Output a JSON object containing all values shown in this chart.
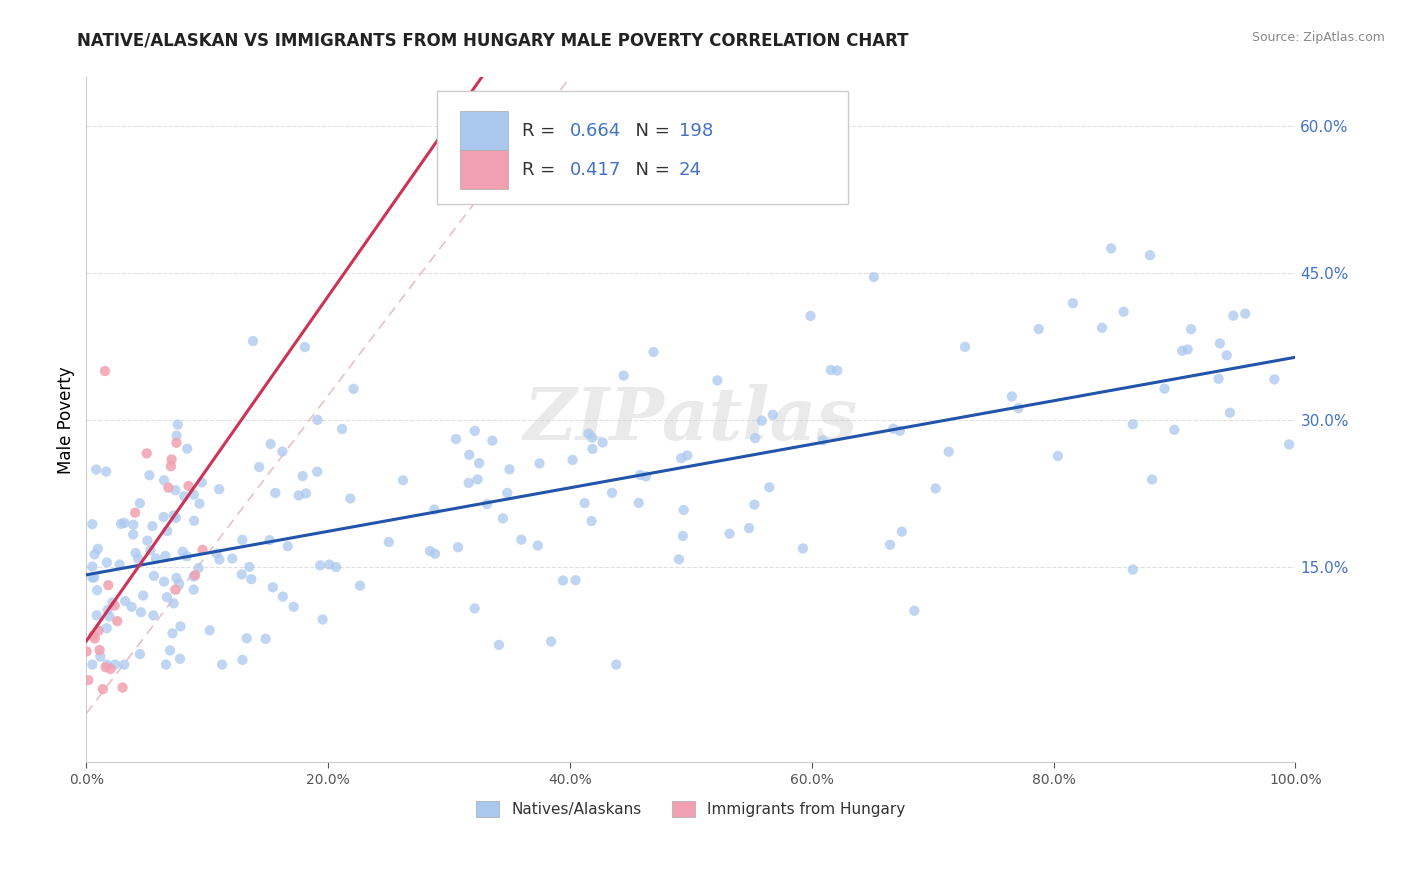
{
  "title": "NATIVE/ALASKAN VS IMMIGRANTS FROM HUNGARY MALE POVERTY CORRELATION CHART",
  "source": "Source: ZipAtlas.com",
  "ylabel": "Male Poverty",
  "xlim": [
    0,
    100
  ],
  "ylim": [
    -5,
    65
  ],
  "xtick_vals": [
    0,
    20,
    40,
    60,
    80,
    100
  ],
  "xtick_labels": [
    "0.0%",
    "20.0%",
    "40.0%",
    "60.0%",
    "80.0%",
    "100.0%"
  ],
  "ytick_vals": [
    15,
    30,
    45,
    60
  ],
  "ytick_labels": [
    "15.0%",
    "30.0%",
    "45.0%",
    "60.0%"
  ],
  "legend_native_r": "0.664",
  "legend_native_n": "198",
  "legend_hungary_r": "0.417",
  "legend_hungary_n": "24",
  "native_color": "#aac8ee",
  "hungary_color": "#f0a0b0",
  "native_line_color": "#2255aa",
  "hungary_line_color": "#cc3355",
  "ref_line_color": "#e8b0b8",
  "text_blue": "#4472c4",
  "watermark": "ZIPatlas",
  "title_color": "#222222",
  "source_color": "#888888",
  "grid_color": "#e0e0e0",
  "ytick_color": "#4472c4",
  "legend_label1": "Natives/Alaskans",
  "legend_label2": "Immigrants from Hungary"
}
